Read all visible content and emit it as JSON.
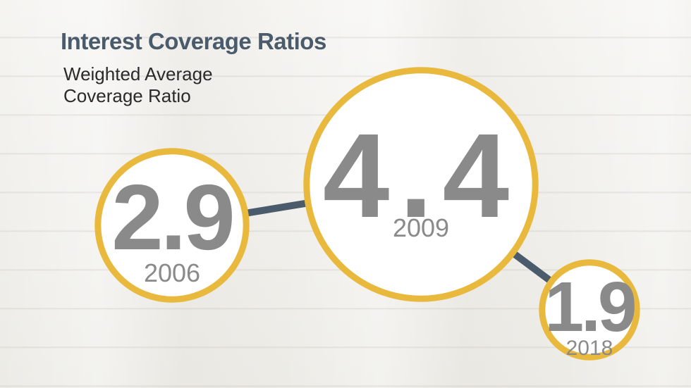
{
  "chart_data": {
    "type": "scatter",
    "title": "Interest Coverage Ratios",
    "subtitle_lines": [
      "Weighted Average",
      "Coverage Ratio"
    ],
    "x": [
      "2006",
      "2009",
      "2018"
    ],
    "values": [
      2.9,
      4.4,
      1.9
    ],
    "value_labels": [
      "2.9",
      "4.4",
      "1.9"
    ],
    "colors": {
      "circle_stroke": "#e8b93c",
      "circle_fill": "#ffffff",
      "connector": "#4a5b6c",
      "text": "#8a8a8a"
    }
  }
}
